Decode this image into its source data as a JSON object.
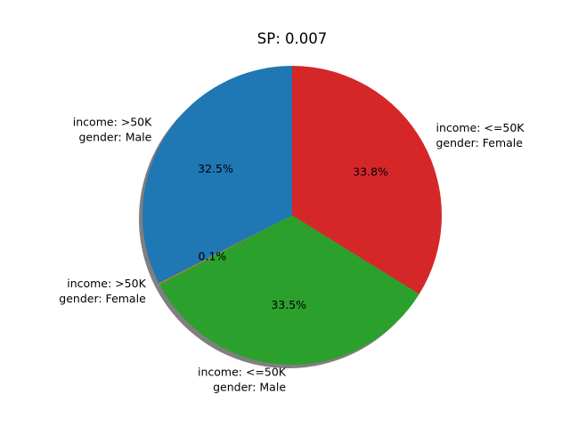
{
  "chart_data": {
    "type": "pie",
    "title": "SP: 0.007",
    "shadow": true,
    "start_angle_deg": 90,
    "direction": "counterclockwise",
    "slices": [
      {
        "label_lines": [
          "income: >50K",
          "gender: Male"
        ],
        "value": 32.5,
        "pct_label": "32.5%",
        "color": "#1f77b4"
      },
      {
        "label_lines": [
          "income: >50K",
          "gender: Female"
        ],
        "value": 0.1,
        "pct_label": "0.1%",
        "color": "#ff7f0e"
      },
      {
        "label_lines": [
          "income: <=50K",
          "gender: Male"
        ],
        "value": 33.5,
        "pct_label": "33.5%",
        "color": "#2ca02c"
      },
      {
        "label_lines": [
          "income: <=50K",
          "gender: Female"
        ],
        "value": 33.8,
        "pct_label": "33.8%",
        "color": "#d62728"
      }
    ]
  }
}
